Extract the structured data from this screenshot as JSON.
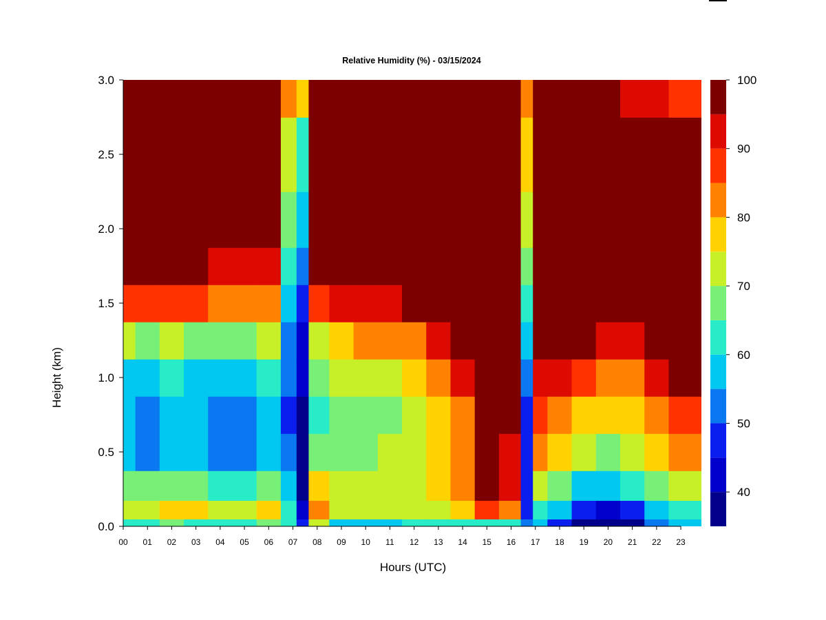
{
  "chart_data": {
    "type": "heatmap",
    "title": "Relative Humidity (%) - 03/15/2024",
    "xlabel": "Hours (UTC)",
    "ylabel": "Height (km)",
    "x_ticks": [
      "00",
      "01",
      "02",
      "03",
      "04",
      "05",
      "06",
      "07",
      "08",
      "09",
      "10",
      "11",
      "12",
      "13",
      "14",
      "15",
      "16",
      "17",
      "18",
      "19",
      "20",
      "21",
      "22",
      "23"
    ],
    "y_ticks": [
      "0.0",
      "0.5",
      "1.0",
      "1.5",
      "2.0",
      "2.5",
      "3.0"
    ],
    "xlim": [
      0,
      23.85
    ],
    "ylim": [
      0,
      3.0
    ],
    "colorbar": {
      "min": 35,
      "max": 100,
      "tick_labels": [
        "40",
        "50",
        "60",
        "70",
        "80",
        "90",
        "100"
      ],
      "tick_values": [
        40,
        50,
        60,
        70,
        80,
        90,
        100
      ],
      "levels": [
        35,
        40,
        45,
        50,
        55,
        60,
        65,
        70,
        75,
        80,
        85,
        90,
        95,
        100
      ],
      "colors": [
        "#00008B",
        "#0000CD",
        "#0A1EF0",
        "#0A78F0",
        "#00C8F0",
        "#28EBC8",
        "#78F078",
        "#C8F028",
        "#FFD200",
        "#FF8200",
        "#FF3200",
        "#DC0A00",
        "#7D0000"
      ]
    },
    "hours": [
      0,
      1,
      2,
      3,
      4,
      5,
      6,
      7,
      7.3,
      8,
      9,
      10,
      11,
      12,
      13,
      14,
      15,
      16,
      16.8,
      17,
      18,
      19,
      20,
      21,
      22,
      23
    ],
    "heights_km": [
      0.0,
      0.1,
      0.25,
      0.5,
      0.75,
      1.0,
      1.25,
      1.5,
      1.75,
      2.0,
      2.5,
      3.0
    ],
    "rh_percent": [
      [
        62,
        72,
        67,
        57,
        55,
        58,
        70,
        88,
        100,
        100,
        100,
        97
      ],
      [
        64,
        74,
        67,
        54,
        52,
        56,
        68,
        86,
        100,
        100,
        100,
        98
      ],
      [
        66,
        75,
        69,
        59,
        58,
        62,
        72,
        89,
        100,
        100,
        100,
        96
      ],
      [
        64,
        75,
        68,
        57,
        55,
        58,
        68,
        85,
        96,
        100,
        100,
        97
      ],
      [
        62,
        72,
        64,
        53,
        50,
        55,
        67,
        82,
        94,
        100,
        100,
        98
      ],
      [
        64,
        74,
        63,
        51,
        50,
        55,
        66,
        80,
        94,
        100,
        100,
        95
      ],
      [
        66,
        76,
        68,
        58,
        57,
        62,
        73,
        84,
        93,
        99,
        100,
        100
      ],
      [
        60,
        60,
        55,
        50,
        48,
        50,
        54,
        58,
        62,
        65,
        72,
        82
      ],
      [
        45,
        42,
        38,
        38,
        39,
        40,
        44,
        48,
        50,
        55,
        62,
        75
      ],
      [
        70,
        82,
        76,
        65,
        63,
        66,
        74,
        86,
        97,
        100,
        100,
        100
      ],
      [
        58,
        74,
        72,
        67,
        65,
        70,
        78,
        90,
        99,
        100,
        100,
        100
      ],
      [
        56,
        72,
        72,
        68,
        67,
        72,
        80,
        92,
        100,
        100,
        100,
        100
      ],
      [
        58,
        72,
        72,
        70,
        68,
        73,
        82,
        94,
        100,
        100,
        100,
        100
      ],
      [
        60,
        72,
        74,
        71,
        70,
        75,
        84,
        96,
        100,
        100,
        100,
        100
      ],
      [
        62,
        74,
        78,
        76,
        76,
        82,
        92,
        100,
        100,
        100,
        100,
        100
      ],
      [
        64,
        76,
        82,
        82,
        84,
        92,
        99,
        100,
        100,
        100,
        100,
        100
      ],
      [
        62,
        88,
        96,
        98,
        99,
        100,
        100,
        100,
        100,
        100,
        100,
        100
      ],
      [
        60,
        80,
        90,
        94,
        97,
        100,
        100,
        100,
        100,
        100,
        100,
        95
      ],
      [
        50,
        48,
        46,
        45,
        48,
        50,
        55,
        60,
        65,
        70,
        75,
        80
      ],
      [
        55,
        62,
        72,
        82,
        89,
        94,
        100,
        100,
        100,
        100,
        100,
        100
      ],
      [
        48,
        58,
        68,
        77,
        84,
        92,
        99,
        100,
        100,
        100,
        100,
        96
      ],
      [
        38,
        46,
        58,
        70,
        78,
        86,
        96,
        100,
        100,
        100,
        100,
        96
      ],
      [
        36,
        44,
        57,
        68,
        75,
        82,
        90,
        98,
        100,
        100,
        100,
        95
      ],
      [
        38,
        46,
        60,
        70,
        76,
        83,
        92,
        100,
        100,
        100,
        100,
        93
      ],
      [
        50,
        58,
        68,
        77,
        84,
        92,
        99,
        100,
        100,
        100,
        100,
        90
      ],
      [
        55,
        62,
        72,
        80,
        88,
        95,
        100,
        100,
        100,
        100,
        100,
        88
      ]
    ]
  }
}
